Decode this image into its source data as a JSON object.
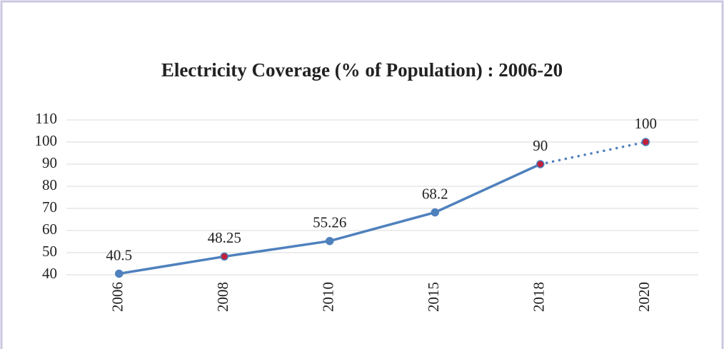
{
  "chart_data": {
    "type": "line",
    "title": "Electricity Coverage (% of Population) : 2006-20",
    "categories": [
      "2006",
      "2008",
      "2010",
      "2015",
      "2018",
      "2020"
    ],
    "values": [
      40.5,
      48.25,
      55.26,
      68.2,
      90,
      100
    ],
    "color": "#4f81bd",
    "marker_colors": [
      "#4f81bd",
      "#c0203a",
      "#4f81bd",
      "#4f81bd",
      "#c0203a",
      "#c0203a"
    ],
    "dotted_from_index": 4,
    "ylim": [
      40,
      110
    ],
    "yticks": [
      40,
      50,
      60,
      70,
      80,
      90,
      100,
      110
    ],
    "grid": true
  }
}
